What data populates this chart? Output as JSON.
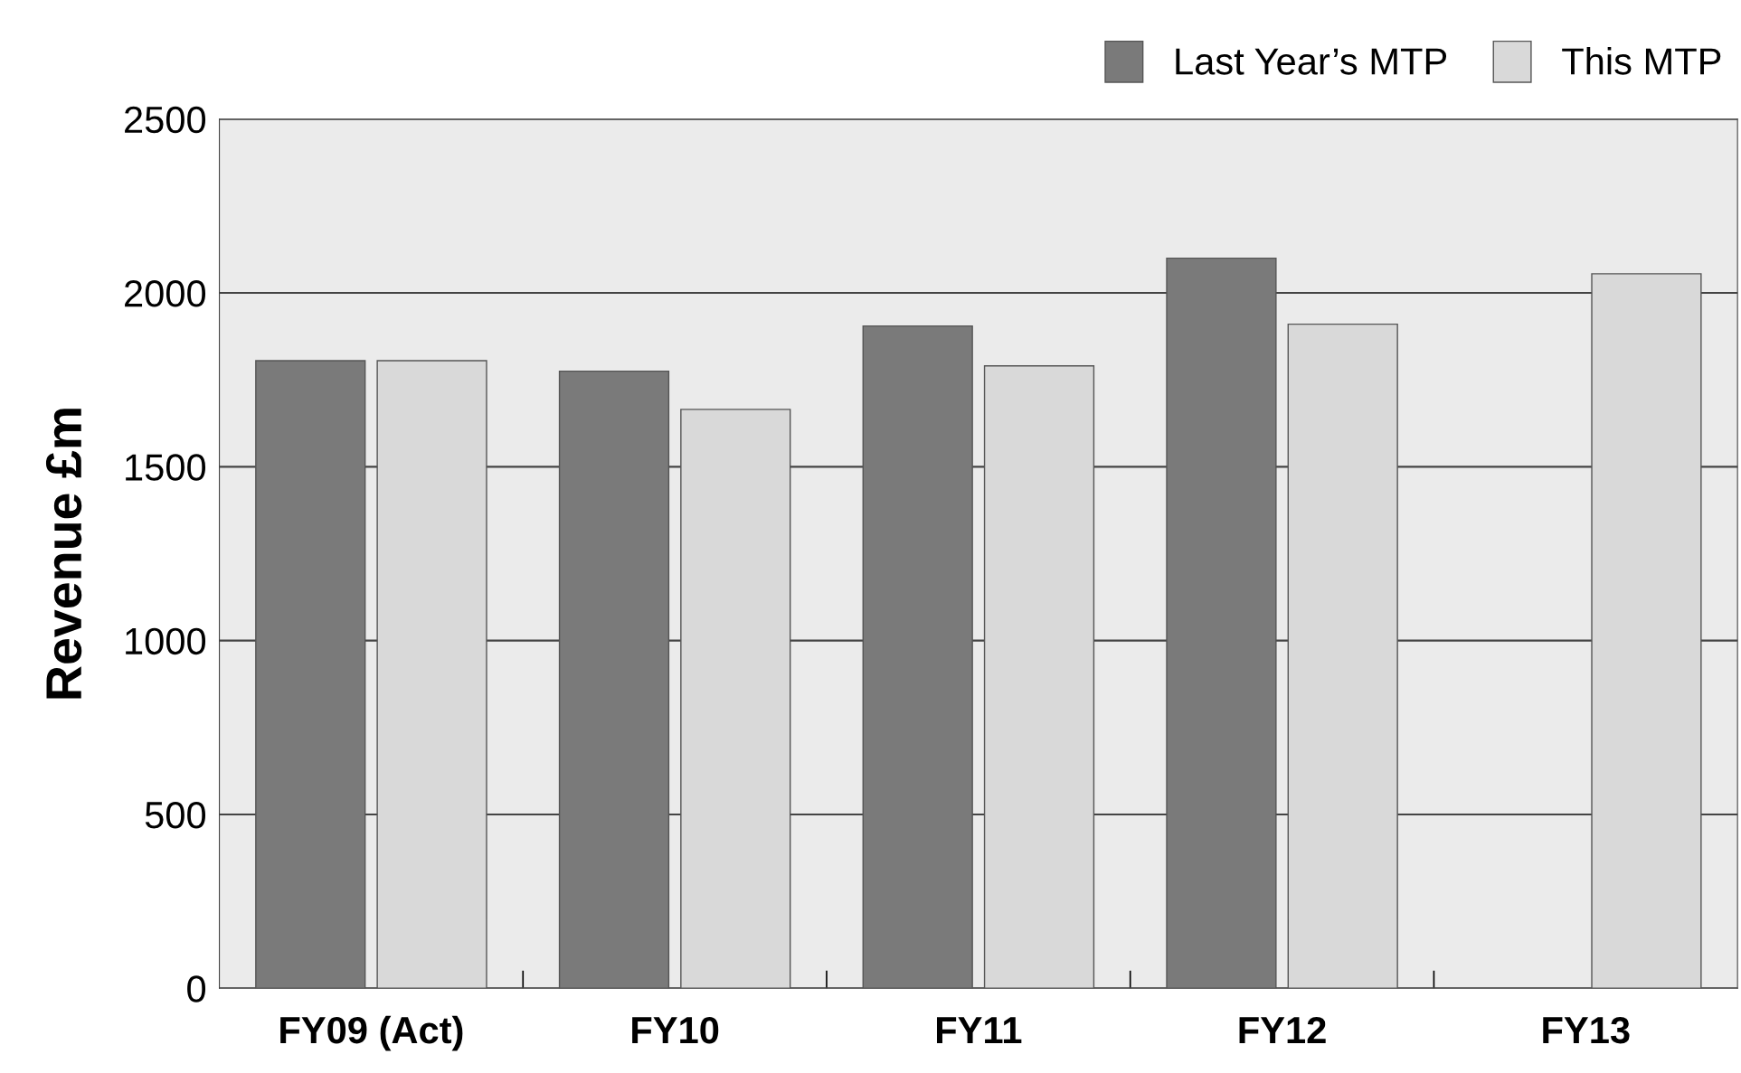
{
  "chart_data": {
    "type": "bar",
    "ylabel": "Revenue £m",
    "categories": [
      "FY09 (Act)",
      "FY10",
      "FY11",
      "FY12",
      "FY13"
    ],
    "series": [
      {
        "name": "Last Year’s MTP",
        "color": "#7a7a7a",
        "values": [
          1805,
          1775,
          1905,
          2100,
          null
        ]
      },
      {
        "name": "This MTP",
        "color": "#d9d9d9",
        "values": [
          1805,
          1665,
          1790,
          1910,
          2055
        ]
      }
    ],
    "ylim": [
      0,
      2500
    ],
    "yticks": [
      0,
      500,
      1000,
      1500,
      2000,
      2500
    ],
    "grid": "y",
    "legend": "top right"
  }
}
